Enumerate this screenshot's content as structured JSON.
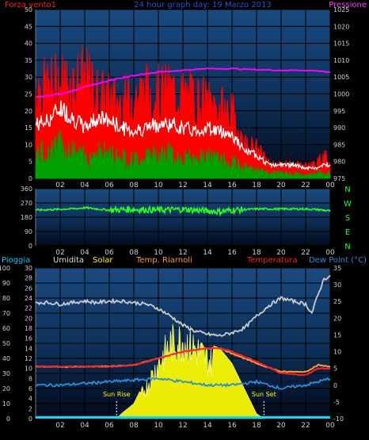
{
  "colors": {
    "wind": "#ff2020",
    "gust": "#ff0000",
    "avg": "#ffffff",
    "base": "#00a000",
    "pressure": "#ff00ff",
    "direction": "#22ff22",
    "humidity": "#cccccc",
    "solar": "#ffff00",
    "apparent": "#ff9933",
    "temperature": "#ff2020",
    "dewpoint": "#2a8fd4",
    "rain": "#00e0ff",
    "bg_top": "#1a4a80",
    "bg_bottom": "#020a1a",
    "grid": "#000000",
    "axis_text": "#cfcfcf"
  },
  "chart_data": [
    {
      "type": "line",
      "title": "24 hour graph day: 19 Marzo 2013",
      "left_label": "Forza vento1",
      "right_label": "Pressione",
      "x_ticks": [
        "02",
        "04",
        "06",
        "08",
        "10",
        "12",
        "14",
        "16",
        "18",
        "20",
        "22",
        "00"
      ],
      "x_range": [
        0,
        24
      ],
      "y_left": {
        "range": [
          0,
          50
        ],
        "ticks": [
          0,
          5,
          10,
          15,
          20,
          25,
          30,
          35,
          40,
          45,
          50
        ]
      },
      "y_right": {
        "range": [
          975,
          1025
        ],
        "ticks": [
          975,
          980,
          985,
          990,
          995,
          1000,
          1005,
          1010,
          1015,
          1020,
          1025
        ]
      },
      "series": [
        {
          "key": "gust",
          "axis": "left",
          "x": [
            0,
            1,
            2,
            3,
            4,
            5,
            6,
            7,
            8,
            9,
            10,
            11,
            12,
            13,
            14,
            15,
            16,
            17,
            18,
            19,
            20,
            21,
            22,
            23,
            23.5,
            24
          ],
          "values": [
            37,
            36,
            39,
            38,
            40,
            34,
            32,
            30,
            33,
            35,
            34,
            35,
            33,
            32,
            30,
            28,
            26,
            14,
            12,
            6,
            5,
            6,
            5,
            6,
            10,
            6
          ]
        },
        {
          "key": "avg",
          "axis": "left",
          "x": [
            0,
            1,
            2,
            3,
            4,
            5,
            6,
            7,
            8,
            9,
            10,
            11,
            12,
            13,
            14,
            15,
            16,
            17,
            18,
            19,
            20,
            21,
            22,
            23,
            23.5,
            24
          ],
          "values": [
            16,
            17,
            21,
            18,
            15,
            18,
            17,
            15,
            14,
            15,
            16,
            16,
            15,
            14,
            15,
            14,
            13,
            8,
            7,
            4,
            4,
            4,
            3,
            3,
            4,
            4
          ]
        },
        {
          "key": "base",
          "axis": "left",
          "x": [
            0,
            1,
            2,
            3,
            4,
            5,
            6,
            7,
            8,
            9,
            10,
            11,
            12,
            13,
            14,
            15,
            16,
            17,
            18,
            19,
            20,
            21,
            22,
            23,
            23.5,
            24
          ],
          "values": [
            9,
            10,
            12,
            10,
            8,
            10,
            9,
            8,
            7,
            8,
            9,
            9,
            8,
            7,
            8,
            7,
            6,
            4,
            3,
            2,
            2,
            2,
            1,
            2,
            2,
            2
          ]
        },
        {
          "key": "pressure",
          "axis": "right",
          "x": [
            0,
            2,
            4,
            6,
            8,
            10,
            12,
            14,
            16,
            18,
            20,
            22,
            23,
            24
          ],
          "values": [
            999,
            1000,
            1002,
            1004,
            1005.5,
            1006.5,
            1007,
            1007.5,
            1007.5,
            1007.2,
            1007,
            1007,
            1006.8,
            1006.5
          ]
        }
      ]
    },
    {
      "type": "line",
      "x_ticks": [
        "02",
        "04",
        "06",
        "08",
        "10",
        "12",
        "14",
        "16",
        "18",
        "20",
        "22",
        "00"
      ],
      "x_range": [
        0,
        24
      ],
      "y_left": {
        "range": [
          0,
          360
        ],
        "ticks": [
          0,
          90,
          180,
          270,
          360
        ]
      },
      "compass": [
        "N",
        "W",
        "S",
        "E",
        "N"
      ],
      "series": [
        {
          "key": "direction",
          "x": [
            0,
            2,
            3.5,
            4,
            6,
            8,
            10,
            12,
            14,
            15,
            16,
            18,
            20,
            22,
            23,
            24
          ],
          "values": [
            225,
            230,
            235,
            240,
            225,
            230,
            225,
            230,
            220,
            215,
            225,
            232,
            232,
            232,
            228,
            220
          ]
        }
      ]
    },
    {
      "type": "area",
      "legend": [
        "Pioggia",
        "Umidita",
        "Solar",
        "Temp. Riarnoli",
        "Temperatura",
        "Dew Point (°C)"
      ],
      "x_ticks": [
        "02",
        "04",
        "06",
        "08",
        "10",
        "12",
        "14",
        "16",
        "18",
        "20",
        "22",
        "00"
      ],
      "x_range": [
        0,
        24
      ],
      "y_left": {
        "range": [
          0,
          100
        ],
        "ticks": [
          0,
          10,
          20,
          30,
          40,
          50,
          60,
          70,
          80,
          90,
          100
        ]
      },
      "y_mid": {
        "range": [
          0,
          30
        ],
        "ticks": [
          0,
          2,
          4,
          6,
          8,
          10,
          12,
          14,
          16,
          18,
          20,
          22,
          24,
          26,
          28,
          30
        ]
      },
      "y_right": {
        "range": [
          -10,
          35
        ],
        "ticks": [
          -10,
          -5,
          0,
          5,
          10,
          15,
          20,
          25,
          30,
          35
        ]
      },
      "annotations": [
        {
          "text": "Sun Rise",
          "x": 6.6
        },
        {
          "text": "Sun Set",
          "x": 18.6
        }
      ],
      "series": [
        {
          "key": "humidity",
          "axis": "left",
          "x": [
            0,
            1,
            2,
            3,
            4,
            5,
            6,
            7,
            8,
            9,
            10,
            11,
            12,
            13,
            14,
            15,
            16,
            17,
            18,
            19,
            20,
            21,
            22,
            22.5,
            23,
            23.5,
            24
          ],
          "values": [
            77,
            77,
            76,
            77,
            78,
            77,
            78,
            78,
            77,
            76,
            73,
            68,
            62,
            58,
            56,
            55,
            57,
            60,
            68,
            75,
            80,
            78,
            76,
            70,
            82,
            93,
            94
          ]
        },
        {
          "key": "solar",
          "axis": "mid",
          "x": [
            6.6,
            7,
            8,
            9,
            10,
            11,
            12,
            13,
            14,
            15,
            16,
            17,
            18,
            18.6
          ],
          "values": [
            0,
            1,
            3,
            8,
            14,
            19,
            20,
            18,
            15,
            14,
            11,
            6,
            1,
            0
          ]
        },
        {
          "key": "apparent",
          "axis": "right",
          "x": [
            0,
            2,
            4,
            6,
            8,
            10,
            12,
            14,
            15,
            16,
            18,
            20,
            22,
            23,
            24
          ],
          "values": [
            5.5,
            5.5,
            5.5,
            5.6,
            6,
            8,
            10,
            11,
            11,
            9.5,
            6.5,
            4,
            4,
            6,
            5.5
          ]
        },
        {
          "key": "temperature",
          "axis": "right",
          "x": [
            0,
            2,
            4,
            6,
            8,
            10,
            12,
            14,
            15,
            16,
            18,
            20,
            22,
            23,
            24
          ],
          "values": [
            5.5,
            5.5,
            5.5,
            5.5,
            6,
            8,
            10,
            11,
            11,
            10,
            7,
            3.5,
            3,
            5,
            5
          ]
        },
        {
          "key": "dewpoint",
          "axis": "right",
          "x": [
            0,
            2,
            4,
            6,
            8,
            10,
            12,
            14,
            16,
            18,
            20,
            22,
            23,
            24
          ],
          "values": [
            0,
            0,
            0.5,
            1,
            1.5,
            2,
            1,
            0,
            0,
            1,
            -1,
            0,
            1,
            2
          ]
        },
        {
          "key": "rain",
          "axis": "left",
          "x": [
            0,
            24
          ],
          "values": [
            0,
            0
          ]
        }
      ]
    }
  ]
}
